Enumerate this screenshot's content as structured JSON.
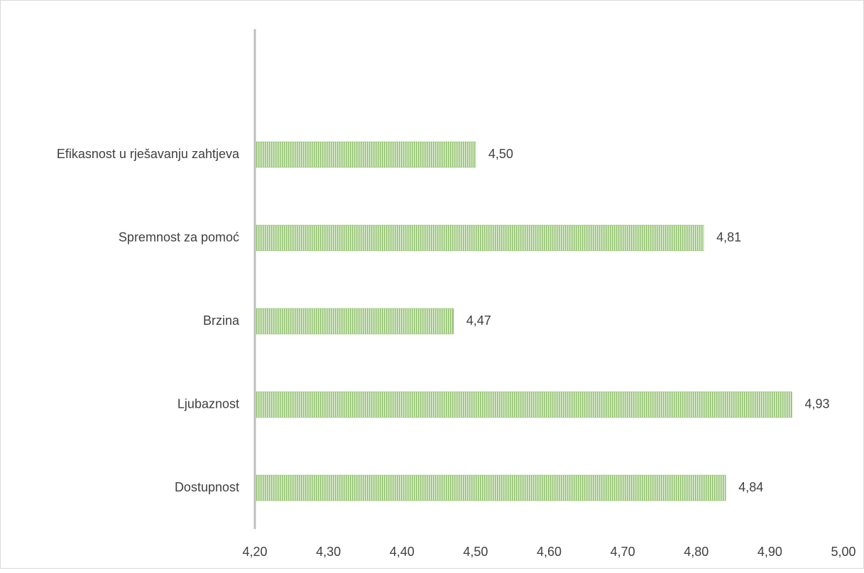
{
  "chart_data": {
    "type": "bar",
    "orientation": "horizontal",
    "title": "",
    "xlabel": "",
    "ylabel": "",
    "categories": [
      "Efikasnost u rješavanju zahtjeva",
      "Spremnost za pomoć",
      "Brzina",
      "Ljubaznost",
      "Dostupnost"
    ],
    "values": [
      4.5,
      4.81,
      4.47,
      4.93,
      4.84
    ],
    "value_labels": [
      "4,50",
      "4,81",
      "4,47",
      "4,93",
      "4,84"
    ],
    "xlim": [
      4.2,
      5.0
    ],
    "x_ticks": [
      4.2,
      4.3,
      4.4,
      4.5,
      4.6,
      4.7,
      4.8,
      4.9,
      5.0
    ],
    "x_tick_labels": [
      "4,20",
      "4,30",
      "4,40",
      "4,50",
      "4,60",
      "4,70",
      "4,80",
      "4,90",
      "5,00"
    ],
    "grid": false,
    "legend": "none",
    "colors": {
      "bar_fill": "#e2efd9",
      "bar_stripe": "#8fc06a",
      "axis": "#bfbfbf",
      "text": "#404040"
    }
  }
}
